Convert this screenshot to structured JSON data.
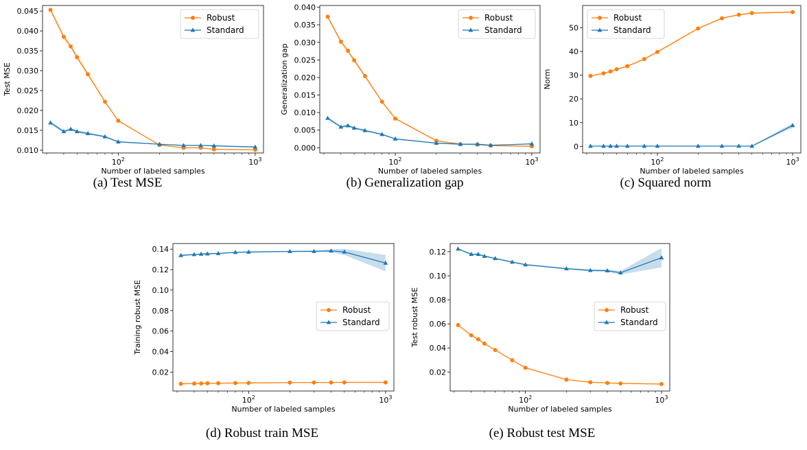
{
  "chart_data": [
    {
      "type": "line",
      "caption": "(a)  Test MSE",
      "xlabel": "Number of labeled samples",
      "ylabel": "Test MSE",
      "xscale": "log",
      "xlim": [
        28,
        1150
      ],
      "ylim": [
        0.0093,
        0.0464
      ],
      "yticks": [
        0.01,
        0.015,
        0.02,
        0.025,
        0.03,
        0.035,
        0.04,
        0.045
      ],
      "ytick_labels": [
        "0.010",
        "0.015",
        "0.020",
        "0.025",
        "0.030",
        "0.035",
        "0.040",
        "0.045"
      ],
      "xticks": [
        100,
        1000
      ],
      "xtick_labels": [
        "10^2",
        "10^3"
      ],
      "legend_position": "top-right",
      "x": [
        32,
        40,
        45,
        50,
        60,
        80,
        100,
        200,
        300,
        400,
        500,
        1000
      ],
      "series": [
        {
          "name": "Robust",
          "color": "#ff7f0e",
          "marker": "circle",
          "values": [
            0.0453,
            0.0385,
            0.0361,
            0.0334,
            0.0291,
            0.0222,
            0.0174,
            0.0113,
            0.0106,
            0.0106,
            0.0102,
            0.0101
          ],
          "band": [
            0.0005,
            0.0005,
            0.0005,
            0.0005,
            0.0004,
            0.0003,
            0.0002,
            0.0001,
            0.0001,
            0.0001,
            0.0001,
            0.0001
          ]
        },
        {
          "name": "Standard",
          "color": "#1f77b4",
          "marker": "triangle",
          "values": [
            0.0169,
            0.0147,
            0.0153,
            0.0147,
            0.0142,
            0.0134,
            0.0121,
            0.0115,
            0.0112,
            0.0112,
            0.0111,
            0.0108
          ],
          "band": [
            0.0004,
            0.0003,
            0.0003,
            0.0003,
            0.0003,
            0.0002,
            0.0002,
            0.0001,
            0.0001,
            0.0001,
            0.0001,
            0.0001
          ]
        }
      ]
    },
    {
      "type": "line",
      "caption": "(b)  Generalization gap",
      "xlabel": "Number of labeled samples",
      "ylabel": "Generalization gap",
      "xscale": "log",
      "xlim": [
        28,
        1150
      ],
      "ylim": [
        -0.0015,
        0.0405
      ],
      "yticks": [
        0.0,
        0.005,
        0.01,
        0.015,
        0.02,
        0.025,
        0.03,
        0.035,
        0.04
      ],
      "ytick_labels": [
        "0.000",
        "0.005",
        "0.010",
        "0.015",
        "0.020",
        "0.025",
        "0.030",
        "0.035",
        "0.040"
      ],
      "xticks": [
        100,
        1000
      ],
      "xtick_labels": [
        "10^2",
        "10^3"
      ],
      "legend_position": "top-right",
      "x": [
        32,
        40,
        45,
        50,
        60,
        80,
        100,
        200,
        300,
        400,
        500,
        1000
      ],
      "series": [
        {
          "name": "Robust",
          "color": "#ff7f0e",
          "marker": "circle",
          "values": [
            0.0373,
            0.0302,
            0.0276,
            0.0249,
            0.0204,
            0.0131,
            0.0083,
            0.002,
            0.001,
            0.0009,
            0.0006,
            0.0004
          ],
          "band": [
            0.0005,
            0.0005,
            0.0005,
            0.0005,
            0.0004,
            0.0003,
            0.0002,
            0.0001,
            0.0001,
            0.0001,
            0.0001,
            0.0001
          ]
        },
        {
          "name": "Standard",
          "color": "#1f77b4",
          "marker": "triangle",
          "values": [
            0.0084,
            0.0059,
            0.0063,
            0.0056,
            0.0049,
            0.0038,
            0.0025,
            0.0013,
            0.001,
            0.001,
            0.0007,
            0.0011
          ],
          "band": [
            0.0004,
            0.0003,
            0.0003,
            0.0003,
            0.0003,
            0.0002,
            0.0002,
            0.0001,
            0.0001,
            0.0001,
            0.0001,
            0.0001
          ]
        }
      ]
    },
    {
      "type": "line",
      "caption": "(c)  Squared norm",
      "xlabel": "Number of labeled samples",
      "ylabel": "Norm",
      "xscale": "log",
      "xlim": [
        28,
        1150
      ],
      "ylim": [
        -2.8,
        59.4
      ],
      "yticks": [
        0,
        10,
        20,
        30,
        40,
        50
      ],
      "ytick_labels": [
        "0",
        "10",
        "20",
        "30",
        "40",
        "50"
      ],
      "xticks": [
        100,
        1000
      ],
      "xtick_labels": [
        "10^2",
        "10^3"
      ],
      "legend_position": "top-left",
      "x": [
        32,
        40,
        45,
        50,
        60,
        80,
        100,
        200,
        300,
        400,
        500,
        1000
      ],
      "series": [
        {
          "name": "Robust",
          "color": "#ff7f0e",
          "marker": "circle",
          "values": [
            29.7,
            30.8,
            31.6,
            32.5,
            33.8,
            36.8,
            39.8,
            49.7,
            54.0,
            55.5,
            56.2,
            56.6
          ],
          "band": [
            0.3,
            0.3,
            0.3,
            0.3,
            0.3,
            0.3,
            0.3,
            0.3,
            0.3,
            0.3,
            0.3,
            0.3
          ]
        },
        {
          "name": "Standard",
          "color": "#1f77b4",
          "marker": "triangle",
          "values": [
            0.1,
            0.1,
            0.1,
            0.1,
            0.1,
            0.1,
            0.1,
            0.1,
            0.1,
            0.1,
            0.1,
            8.8
          ],
          "band": [
            0.1,
            0.1,
            0.1,
            0.1,
            0.1,
            0.1,
            0.1,
            0.1,
            0.1,
            0.1,
            0.1,
            1.0
          ]
        }
      ]
    },
    {
      "type": "line",
      "caption": "(d)  Robust train MSE",
      "xlabel": "Number of labeled samples",
      "ylabel": "Training robust MSE",
      "xscale": "log",
      "xlim": [
        28,
        1150
      ],
      "ylim": [
        0.0015,
        0.1455
      ],
      "yticks": [
        0.02,
        0.04,
        0.06,
        0.08,
        0.1,
        0.12,
        0.14
      ],
      "ytick_labels": [
        "0.02",
        "0.04",
        "0.06",
        "0.08",
        "0.10",
        "0.12",
        "0.14"
      ],
      "xticks": [
        100,
        1000
      ],
      "xtick_labels": [
        "10^2",
        "10^3"
      ],
      "legend_position": "center-right",
      "x": [
        32,
        40,
        45,
        50,
        60,
        80,
        100,
        200,
        300,
        400,
        500,
        1000
      ],
      "series": [
        {
          "name": "Robust",
          "color": "#ff7f0e",
          "marker": "circle",
          "values": [
            0.0085,
            0.0088,
            0.0089,
            0.009,
            0.0091,
            0.0093,
            0.0094,
            0.0097,
            0.0098,
            0.0098,
            0.0099,
            0.0099
          ],
          "band": [
            0.0002,
            0.0002,
            0.0002,
            0.0002,
            0.0002,
            0.0002,
            0.0002,
            0.0002,
            0.0002,
            0.0002,
            0.0002,
            0.0002
          ]
        },
        {
          "name": "Standard",
          "color": "#1f77b4",
          "marker": "triangle",
          "values": [
            0.1339,
            0.1348,
            0.1352,
            0.1355,
            0.1358,
            0.1369,
            0.1372,
            0.1378,
            0.1379,
            0.1383,
            0.1373,
            0.1264
          ],
          "band": [
            0.0006,
            0.0006,
            0.0006,
            0.0006,
            0.0006,
            0.0006,
            0.0006,
            0.0006,
            0.0008,
            0.0015,
            0.003,
            0.008
          ]
        }
      ]
    },
    {
      "type": "line",
      "caption": "(e)  Robust test MSE",
      "xlabel": "Number of labeled samples",
      "ylabel": "Test robust MSE",
      "xscale": "log",
      "xlim": [
        28,
        1150
      ],
      "ylim": [
        0.0042,
        0.1268
      ],
      "yticks": [
        0.02,
        0.04,
        0.06,
        0.08,
        0.1,
        0.12
      ],
      "ytick_labels": [
        "0.02",
        "0.04",
        "0.06",
        "0.08",
        "0.10",
        "0.12"
      ],
      "xticks": [
        100,
        1000
      ],
      "xtick_labels": [
        "10^2",
        "10^3"
      ],
      "legend_position": "center-right",
      "x": [
        32,
        40,
        45,
        50,
        60,
        80,
        100,
        200,
        300,
        400,
        500,
        1000
      ],
      "series": [
        {
          "name": "Robust",
          "color": "#ff7f0e",
          "marker": "circle",
          "values": [
            0.059,
            0.0505,
            0.0472,
            0.0436,
            0.0383,
            0.0298,
            0.0235,
            0.0137,
            0.0115,
            0.0109,
            0.0105,
            0.01
          ],
          "band": [
            0.0005,
            0.0005,
            0.0005,
            0.0005,
            0.0004,
            0.0003,
            0.0003,
            0.0002,
            0.0002,
            0.0002,
            0.0002,
            0.0002
          ]
        },
        {
          "name": "Standard",
          "color": "#1f77b4",
          "marker": "triangle",
          "values": [
            0.1223,
            0.1179,
            0.1179,
            0.1163,
            0.1144,
            0.1114,
            0.1092,
            0.1059,
            0.1045,
            0.1042,
            0.1025,
            0.115
          ],
          "band": [
            0.0006,
            0.0006,
            0.0006,
            0.0006,
            0.0006,
            0.0006,
            0.0006,
            0.0006,
            0.0008,
            0.001,
            0.0015,
            0.008
          ]
        }
      ]
    }
  ]
}
